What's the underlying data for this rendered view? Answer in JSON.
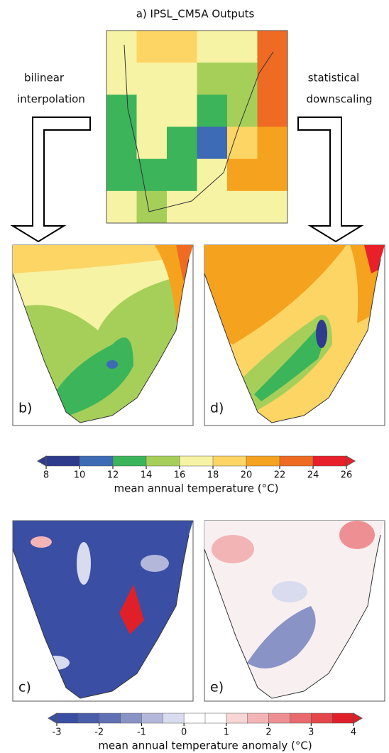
{
  "header": {
    "title": "a) IPSL_CM5A Outputs"
  },
  "arrows": {
    "left": [
      "bilinear",
      "interpolation"
    ],
    "right": [
      "statistical",
      "downscaling"
    ]
  },
  "panels": {
    "b": "b)",
    "d": "d)",
    "c": "c)",
    "e": "e)"
  },
  "colorbar_temperature": {
    "label": "mean annual temperature (°C)",
    "lim": [
      8,
      26
    ],
    "ticks": [
      8,
      10,
      12,
      14,
      16,
      18,
      20,
      22,
      24,
      26
    ],
    "colors": [
      "#2e3a8c",
      "#3d6bb5",
      "#3cb45a",
      "#a6cf5a",
      "#f6f3a4",
      "#fcd565",
      "#f5a21e",
      "#ef6a22",
      "#e8202a"
    ]
  },
  "colorbar_anomaly": {
    "label": "mean annual temperature anomaly (°C)",
    "lim": [
      -3,
      4
    ],
    "ticks": [
      -3,
      -2,
      -1,
      0,
      1,
      2,
      3,
      4
    ],
    "colors": [
      "#3a4ea3",
      "#4a5daa",
      "#6170b5",
      "#8a93c6",
      "#b3b8da",
      "#d9dbee",
      "#ffffff",
      "#ffffff",
      "#f8d6d6",
      "#f3b4b6",
      "#ee9093",
      "#e96a6e",
      "#e4474b",
      "#e02028"
    ]
  }
}
